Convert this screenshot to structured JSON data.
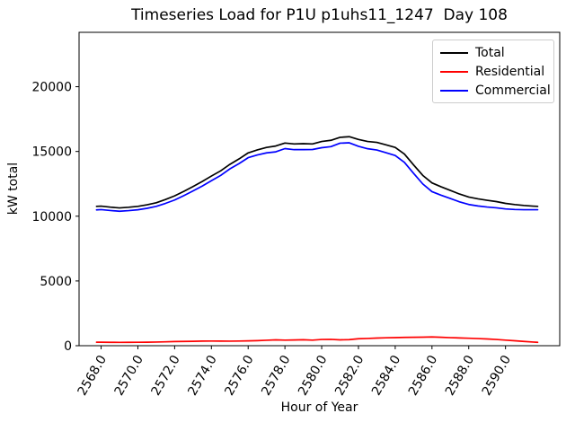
{
  "chart_data": {
    "type": "line",
    "title": "Timeseries Load for P1U p1uhs11_1247  Day 108",
    "xlabel": "Hour of Year",
    "ylabel": "kW total",
    "grid": false,
    "legend_position": "upper right",
    "xlim": [
      2566.8,
      2592.95
    ],
    "ylim": [
      0,
      24200
    ],
    "x_ticks": [
      2568,
      2570,
      2572,
      2574,
      2576,
      2578,
      2580,
      2582,
      2584,
      2586,
      2588,
      2590
    ],
    "x_tick_labels": [
      "2568.0",
      "2570.0",
      "2572.0",
      "2574.0",
      "2576.0",
      "2578.0",
      "2580.0",
      "2582.0",
      "2584.0",
      "2586.0",
      "2588.0",
      "2590.0"
    ],
    "y_ticks": [
      0,
      5000,
      10000,
      15000,
      20000
    ],
    "y_tick_labels": [
      "0",
      "5000",
      "10000",
      "15000",
      "20000"
    ],
    "x": [
      2567.75,
      2568.0,
      2568.5,
      2569.0,
      2569.5,
      2570.0,
      2570.5,
      2571.0,
      2571.5,
      2572.0,
      2572.5,
      2573.0,
      2573.5,
      2574.0,
      2574.5,
      2575.0,
      2575.5,
      2576.0,
      2576.5,
      2577.0,
      2577.5,
      2578.0,
      2578.5,
      2579.0,
      2579.5,
      2580.0,
      2580.5,
      2581.0,
      2581.5,
      2582.0,
      2582.5,
      2583.0,
      2583.5,
      2584.0,
      2584.5,
      2585.0,
      2585.5,
      2586.0,
      2586.5,
      2587.0,
      2587.5,
      2588.0,
      2588.5,
      2589.0,
      2589.5,
      2590.0,
      2590.5,
      2591.0,
      2591.5,
      2591.75
    ],
    "series": [
      {
        "name": "Total",
        "color": "#000000",
        "values": [
          10760,
          10780,
          10700,
          10640,
          10690,
          10760,
          10880,
          11040,
          11290,
          11570,
          11920,
          12290,
          12680,
          13100,
          13500,
          14000,
          14420,
          14890,
          15120,
          15310,
          15420,
          15650,
          15580,
          15600,
          15580,
          15770,
          15860,
          16090,
          16140,
          15930,
          15770,
          15700,
          15510,
          15310,
          14800,
          13960,
          13150,
          12570,
          12270,
          11990,
          11710,
          11480,
          11340,
          11230,
          11130,
          10990,
          10900,
          10830,
          10780,
          10760
        ]
      },
      {
        "name": "Residential",
        "color": "#ff0000",
        "values": [
          270,
          270,
          260,
          255,
          260,
          265,
          270,
          280,
          300,
          320,
          330,
          340,
          355,
          360,
          355,
          350,
          360,
          370,
          390,
          420,
          450,
          430,
          440,
          460,
          430,
          480,
          490,
          450,
          470,
          535,
          560,
          590,
          610,
          625,
          640,
          650,
          660,
          675,
          650,
          620,
          600,
          575,
          550,
          520,
          480,
          430,
          380,
          330,
          280,
          260
        ]
      },
      {
        "name": "Commercial",
        "color": "#0000ff",
        "values": [
          10490,
          10510,
          10440,
          10385,
          10430,
          10495,
          10610,
          10760,
          10990,
          11250,
          11590,
          11950,
          12325,
          12740,
          13145,
          13650,
          14060,
          14520,
          14730,
          14890,
          14970,
          15220,
          15140,
          15140,
          15150,
          15290,
          15370,
          15640,
          15670,
          15395,
          15210,
          15110,
          14900,
          14685,
          14160,
          13310,
          12490,
          11895,
          11620,
          11370,
          11110,
          10905,
          10790,
          10710,
          10650,
          10560,
          10520,
          10500,
          10500,
          10500
        ]
      }
    ]
  }
}
